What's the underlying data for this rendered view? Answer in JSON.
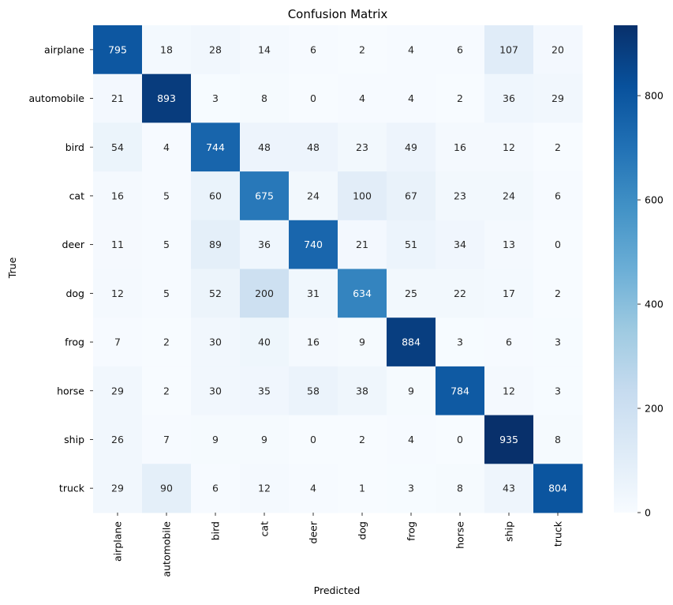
{
  "chart_data": {
    "type": "heatmap",
    "title": "Confusion Matrix",
    "xlabel": "Predicted",
    "ylabel": "True",
    "x_categories": [
      "airplane",
      "automobile",
      "bird",
      "cat",
      "deer",
      "dog",
      "frog",
      "horse",
      "ship",
      "truck"
    ],
    "y_categories": [
      "airplane",
      "automobile",
      "bird",
      "cat",
      "deer",
      "dog",
      "frog",
      "horse",
      "ship",
      "truck"
    ],
    "values": [
      [
        795,
        18,
        28,
        14,
        6,
        2,
        4,
        6,
        107,
        20
      ],
      [
        21,
        893,
        3,
        8,
        0,
        4,
        4,
        2,
        36,
        29
      ],
      [
        54,
        4,
        744,
        48,
        48,
        23,
        49,
        16,
        12,
        2
      ],
      [
        16,
        5,
        60,
        675,
        24,
        100,
        67,
        23,
        24,
        6
      ],
      [
        11,
        5,
        89,
        36,
        740,
        21,
        51,
        34,
        13,
        0
      ],
      [
        12,
        5,
        52,
        200,
        31,
        634,
        25,
        22,
        17,
        2
      ],
      [
        7,
        2,
        30,
        40,
        16,
        9,
        884,
        3,
        6,
        3
      ],
      [
        29,
        2,
        30,
        35,
        58,
        38,
        9,
        784,
        12,
        3
      ],
      [
        26,
        7,
        9,
        9,
        0,
        2,
        4,
        0,
        935,
        8
      ],
      [
        29,
        90,
        6,
        12,
        4,
        1,
        3,
        8,
        43,
        804
      ]
    ],
    "colormap": "Blues",
    "colorbar": {
      "range": [
        0,
        935
      ],
      "ticks": [
        0,
        200,
        400,
        600,
        800
      ]
    },
    "annotations": true
  }
}
